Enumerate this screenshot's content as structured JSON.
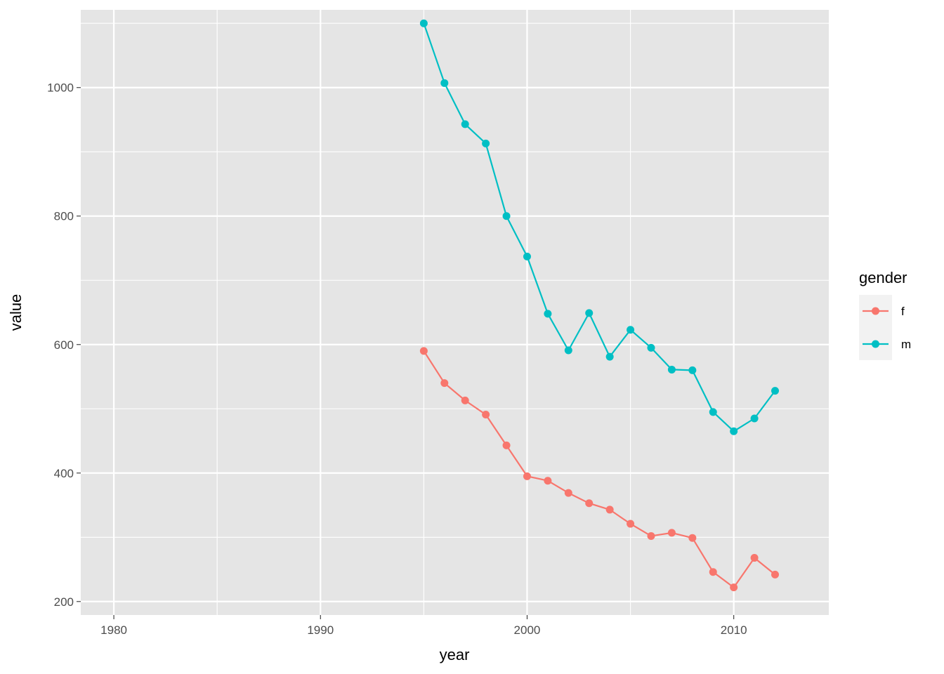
{
  "chart_data": {
    "type": "line",
    "xlabel": "year",
    "ylabel": "value",
    "xlim": [
      1978.4,
      2014.6
    ],
    "ylim": [
      179,
      1121
    ],
    "x_ticks": [
      1980,
      1990,
      2000,
      2010
    ],
    "x_minor_ticks": [
      1985,
      1995,
      2005
    ],
    "y_ticks": [
      200,
      400,
      600,
      800,
      1000
    ],
    "y_minor_ticks": [
      300,
      500,
      700,
      900,
      1100
    ],
    "grid": true,
    "legend": {
      "title": "gender",
      "placement": "right"
    },
    "panel_color": "#e5e5e5",
    "x": [
      1995,
      1996,
      1997,
      1998,
      1999,
      2000,
      2001,
      2002,
      2003,
      2004,
      2005,
      2006,
      2007,
      2008,
      2009,
      2010,
      2011,
      2012
    ],
    "series": [
      {
        "name": "f",
        "color": "#f8766d",
        "values": [
          590,
          540,
          513,
          491,
          443,
          395,
          388,
          369,
          353,
          343,
          321,
          302,
          307,
          299,
          246,
          222,
          268,
          242
        ]
      },
      {
        "name": "m",
        "color": "#00bfc4",
        "values": [
          1100,
          1007,
          943,
          913,
          800,
          737,
          648,
          591,
          649,
          581,
          623,
          595,
          561,
          560,
          495,
          465,
          485,
          528
        ]
      }
    ]
  }
}
